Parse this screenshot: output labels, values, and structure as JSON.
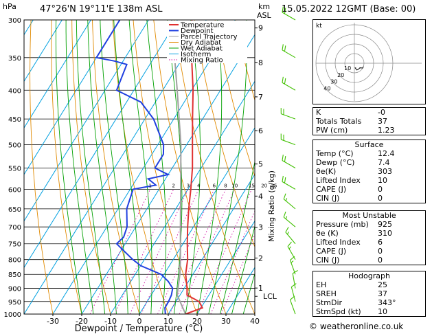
{
  "header": {
    "location": "47°26'N  19°11'E  138m  ASL",
    "datetime": "15.05.2022  12GMT  (Base: 00)",
    "p_unit": "hPa",
    "km_unit": "km",
    "asl": "ASL"
  },
  "legend": [
    "Temperature",
    "Dewpoint",
    "Parcel Trajectory",
    "Dry Adiabat",
    "Wet Adiabat",
    "Isotherm",
    "Mixing Ratio"
  ],
  "colors": {
    "temperature": "#e03030",
    "dewpoint": "#2040e0",
    "parcel": "#a0a0a0",
    "dry_adiabat": "#e08a00",
    "wet_adiabat": "#00a000",
    "isotherm": "#00a0e0",
    "mixing_ratio": "#d000a0",
    "wind_barbs": "#40c000"
  },
  "chart_data": {
    "type": "line",
    "title": "",
    "xlabel": "Dewpoint / Temperature (°C)",
    "ylabel": "hPa",
    "y2label": "Mixing Ratio (g/kg)",
    "xlim": [
      -40,
      40
    ],
    "ylim": [
      1000,
      300
    ],
    "y_scale": "log",
    "pressure_ticks": [
      300,
      350,
      400,
      450,
      500,
      550,
      600,
      650,
      700,
      750,
      800,
      850,
      900,
      950,
      1000
    ],
    "temp_ticks": [
      -30,
      -20,
      -10,
      0,
      10,
      20,
      30,
      40
    ],
    "km_ticks": [
      {
        "label": "9",
        "p": 310
      },
      {
        "label": "8",
        "p": 357
      },
      {
        "label": "7",
        "p": 411
      },
      {
        "label": "6",
        "p": 472
      },
      {
        "label": "5",
        "p": 541
      },
      {
        "label": "4",
        "p": 617
      },
      {
        "label": "3",
        "p": 701
      },
      {
        "label": "2",
        "p": 795
      },
      {
        "label": "1",
        "p": 899
      },
      {
        "label": "LCL",
        "p": 930
      }
    ],
    "mixing_ratio_labels": [
      "1",
      "2",
      "3",
      "4",
      "6",
      "8",
      "10",
      "15",
      "20",
      "25"
    ],
    "series": [
      {
        "name": "Temperature",
        "points": [
          {
            "p": 1000,
            "t": 16.0
          },
          {
            "p": 975,
            "t": 20.5
          },
          {
            "p": 950,
            "t": 18.0
          },
          {
            "p": 925,
            "t": 12.4
          },
          {
            "p": 900,
            "t": 11.0
          },
          {
            "p": 850,
            "t": 7.5
          },
          {
            "p": 800,
            "t": 5.0
          },
          {
            "p": 750,
            "t": 1.5
          },
          {
            "p": 700,
            "t": -2.0
          },
          {
            "p": 650,
            "t": -5.5
          },
          {
            "p": 600,
            "t": -9.0
          },
          {
            "p": 550,
            "t": -13.0
          },
          {
            "p": 500,
            "t": -18.0
          },
          {
            "p": 450,
            "t": -23.5
          },
          {
            "p": 400,
            "t": -29.5
          },
          {
            "p": 350,
            "t": -37.0
          },
          {
            "p": 300,
            "t": -45.0
          }
        ]
      },
      {
        "name": "Dewpoint",
        "points": [
          {
            "p": 1000,
            "t": 9.0
          },
          {
            "p": 975,
            "t": 7.5
          },
          {
            "p": 950,
            "t": 7.4
          },
          {
            "p": 925,
            "t": 7.0
          },
          {
            "p": 900,
            "t": 6.0
          },
          {
            "p": 875,
            "t": 3.0
          },
          {
            "p": 850,
            "t": -1.0
          },
          {
            "p": 820,
            "t": -10.0
          },
          {
            "p": 800,
            "t": -14.0
          },
          {
            "p": 750,
            "t": -23.0
          },
          {
            "p": 730,
            "t": -22.0
          },
          {
            "p": 700,
            "t": -23.0
          },
          {
            "p": 650,
            "t": -27.0
          },
          {
            "p": 600,
            "t": -29.0
          },
          {
            "p": 590,
            "t": -22.0
          },
          {
            "p": 575,
            "t": -26.0
          },
          {
            "p": 565,
            "t": -20.0
          },
          {
            "p": 550,
            "t": -26.0
          },
          {
            "p": 520,
            "t": -26.0
          },
          {
            "p": 500,
            "t": -28.0
          },
          {
            "p": 450,
            "t": -37.0
          },
          {
            "p": 420,
            "t": -45.0
          },
          {
            "p": 400,
            "t": -56.0
          },
          {
            "p": 360,
            "t": -58.0
          },
          {
            "p": 355,
            "t": -63.0
          },
          {
            "p": 350,
            "t": -70.0
          },
          {
            "p": 300,
            "t": -70.0
          }
        ]
      },
      {
        "name": "Parcel Trajectory",
        "points": [
          {
            "p": 1000,
            "t": 16.0
          },
          {
            "p": 925,
            "t": 9.0
          },
          {
            "p": 850,
            "t": 5.5
          },
          {
            "p": 800,
            "t": 2.5
          },
          {
            "p": 700,
            "t": -4.5
          },
          {
            "p": 600,
            "t": -12.5
          },
          {
            "p": 500,
            "t": -22.0
          },
          {
            "p": 400,
            "t": -35.0
          },
          {
            "p": 300,
            "t": -52.0
          }
        ]
      }
    ],
    "wind_barbs": [
      {
        "p": 1000,
        "dir": 340,
        "spd": 10
      },
      {
        "p": 950,
        "dir": 345,
        "spd": 10
      },
      {
        "p": 900,
        "dir": 350,
        "spd": 10
      },
      {
        "p": 850,
        "dir": 340,
        "spd": 15
      },
      {
        "p": 800,
        "dir": 330,
        "spd": 15
      },
      {
        "p": 750,
        "dir": 320,
        "spd": 15
      },
      {
        "p": 700,
        "dir": 310,
        "spd": 15
      },
      {
        "p": 650,
        "dir": 310,
        "spd": 15
      },
      {
        "p": 600,
        "dir": 300,
        "spd": 20
      },
      {
        "p": 550,
        "dir": 300,
        "spd": 20
      },
      {
        "p": 500,
        "dir": 290,
        "spd": 20
      },
      {
        "p": 450,
        "dir": 290,
        "spd": 20
      },
      {
        "p": 400,
        "dir": 300,
        "spd": 20
      },
      {
        "p": 350,
        "dir": 300,
        "spd": 20
      },
      {
        "p": 300,
        "dir": 300,
        "spd": 20
      }
    ]
  },
  "hodograph": {
    "label": "kt",
    "rings": [
      "10",
      "20",
      "30",
      "40"
    ]
  },
  "indices": {
    "top": [
      {
        "label": "K",
        "value": "-0"
      },
      {
        "label": "Totals Totals",
        "value": "37"
      },
      {
        "label": "PW (cm)",
        "value": "1.23"
      }
    ],
    "surface_title": "Surface",
    "surface": [
      {
        "label": "Temp (°C)",
        "value": "12.4"
      },
      {
        "label": "Dewp (°C)",
        "value": "7.4"
      },
      {
        "label": "θe(K)",
        "value": "303"
      },
      {
        "label": "Lifted Index",
        "value": "10"
      },
      {
        "label": "CAPE (J)",
        "value": "0"
      },
      {
        "label": "CIN (J)",
        "value": "0"
      }
    ],
    "unstable_title": "Most Unstable",
    "unstable": [
      {
        "label": "Pressure (mb)",
        "value": "925"
      },
      {
        "label": "θe (K)",
        "value": "310"
      },
      {
        "label": "Lifted Index",
        "value": "6"
      },
      {
        "label": "CAPE (J)",
        "value": "0"
      },
      {
        "label": "CIN (J)",
        "value": "0"
      }
    ],
    "hodo_title": "Hodograph",
    "hodo": [
      {
        "label": "EH",
        "value": "25"
      },
      {
        "label": "SREH",
        "value": "37"
      },
      {
        "label": "StmDir",
        "value": "343°"
      },
      {
        "label": "StmSpd (kt)",
        "value": "10"
      }
    ]
  },
  "credit": "© weatheronline.co.uk"
}
